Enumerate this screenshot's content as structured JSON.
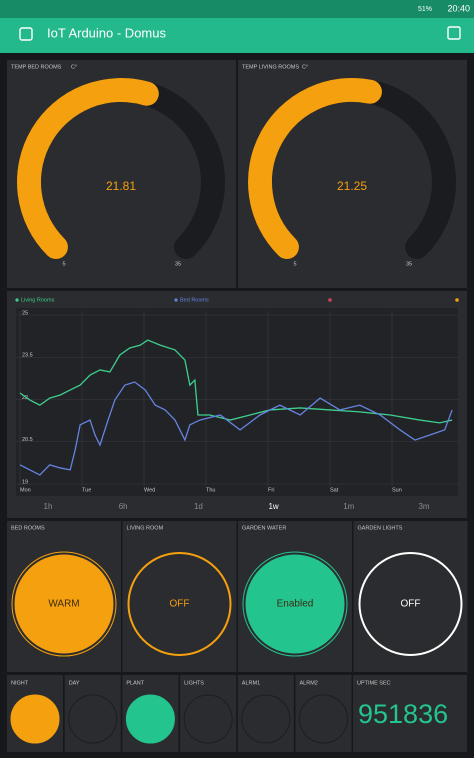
{
  "status_bar": {
    "battery": "51%",
    "time": "20:40"
  },
  "header": {
    "title": "IoT Arduino - Domus"
  },
  "gauges": [
    {
      "label": "TEMP  BED ROOMS",
      "unit": "C°",
      "value": 21.81,
      "min": 5,
      "max": 35,
      "color": "#f5a00e"
    },
    {
      "label": "TEMP  LIVING ROOMS",
      "unit": "C°",
      "value": 21.25,
      "min": 5,
      "max": 35,
      "color": "#f5a00e"
    }
  ],
  "chart_data": {
    "type": "line",
    "series": [
      {
        "name": "Living Rooms",
        "color": "#3ecf8e",
        "x": [
          0,
          0.16,
          0.32,
          0.48,
          0.65,
          0.81,
          0.97,
          1.13,
          1.29,
          1.45,
          1.61,
          1.77,
          1.94,
          2.06,
          2.26,
          2.5,
          2.66,
          2.74,
          2.82,
          2.87,
          3.06,
          3.39,
          3.71,
          4.03,
          4.52,
          5.0,
          5.48,
          5.97,
          6.45,
          6.77,
          6.97
        ],
        "values": [
          22.23,
          21.98,
          21.8,
          22.05,
          22.16,
          22.34,
          22.51,
          22.87,
          23.05,
          22.98,
          23.58,
          23.83,
          23.93,
          24.11,
          23.93,
          23.76,
          23.4,
          22.51,
          22.69,
          21.45,
          21.45,
          21.27,
          21.45,
          21.63,
          21.7,
          21.63,
          21.56,
          21.45,
          21.27,
          21.17,
          21.27
        ]
      },
      {
        "name": "Bed Rooms",
        "color": "#6484e0",
        "x": [
          0,
          0.16,
          0.32,
          0.48,
          0.65,
          0.81,
          0.89,
          0.97,
          1.13,
          1.21,
          1.29,
          1.42,
          1.53,
          1.69,
          1.85,
          2.02,
          2.18,
          2.34,
          2.5,
          2.66,
          2.74,
          2.9,
          3.23,
          3.55,
          3.87,
          4.19,
          4.52,
          4.84,
          5.16,
          5.48,
          5.81,
          6.13,
          6.37,
          6.61,
          6.85,
          6.97
        ],
        "values": [
          19.68,
          19.5,
          19.32,
          19.68,
          19.57,
          19.5,
          20.21,
          21.1,
          21.27,
          20.74,
          20.38,
          21.27,
          21.98,
          22.51,
          22.62,
          22.34,
          21.8,
          21.63,
          21.27,
          20.56,
          21.1,
          21.27,
          21.45,
          20.92,
          21.45,
          21.8,
          21.45,
          22.05,
          21.63,
          21.8,
          21.45,
          20.92,
          20.56,
          20.74,
          20.92,
          21.63
        ]
      }
    ],
    "xlim": [
      0,
      7
    ],
    "xticks": [
      {
        "value": 0,
        "label": "Mon"
      },
      {
        "value": 1,
        "label": "Tue"
      },
      {
        "value": 2,
        "label": "Wed"
      },
      {
        "value": 3,
        "label": "Thu"
      },
      {
        "value": 4,
        "label": "Fri"
      },
      {
        "value": 5,
        "label": "Sat"
      },
      {
        "value": 6,
        "label": "Sun"
      }
    ],
    "ylim": [
      19,
      25
    ],
    "yticks": [
      19,
      20.5,
      22,
      23.5,
      25
    ],
    "grid": true,
    "periods": [
      "1h",
      "6h",
      "1d",
      "1w",
      "1m",
      "3m"
    ],
    "selected_period": 3
  },
  "buttons": [
    {
      "label": "BED ROOMS",
      "state": "WARM",
      "color": "#f5a00e",
      "on": true
    },
    {
      "label": "LIVING ROOM",
      "state": "OFF",
      "color": "#f5a00e",
      "on": false
    },
    {
      "label": "GARDEN WATER",
      "state": "Enabled",
      "color": "#23c48e",
      "on": true
    },
    {
      "label": "GARDEN LIGHTS",
      "state": "OFF",
      "color": "#ffffff",
      "on": false
    }
  ],
  "leds": [
    {
      "label": "NIGHT",
      "color": "#f5a00e",
      "on": true
    },
    {
      "label": "DAY",
      "color": "#f5a00e",
      "on": false
    },
    {
      "label": "PLANT",
      "color": "#23c48e",
      "on": true
    },
    {
      "label": "LIGHTS",
      "color": "#23c48e",
      "on": false
    },
    {
      "label": "ALRM1",
      "color": "#d3435c",
      "on": false
    },
    {
      "label": "ALRM2",
      "color": "#d3435c",
      "on": false
    }
  ],
  "uptime": {
    "label": "UPTIME SEC",
    "value": 951836,
    "color": "#23c48e"
  }
}
